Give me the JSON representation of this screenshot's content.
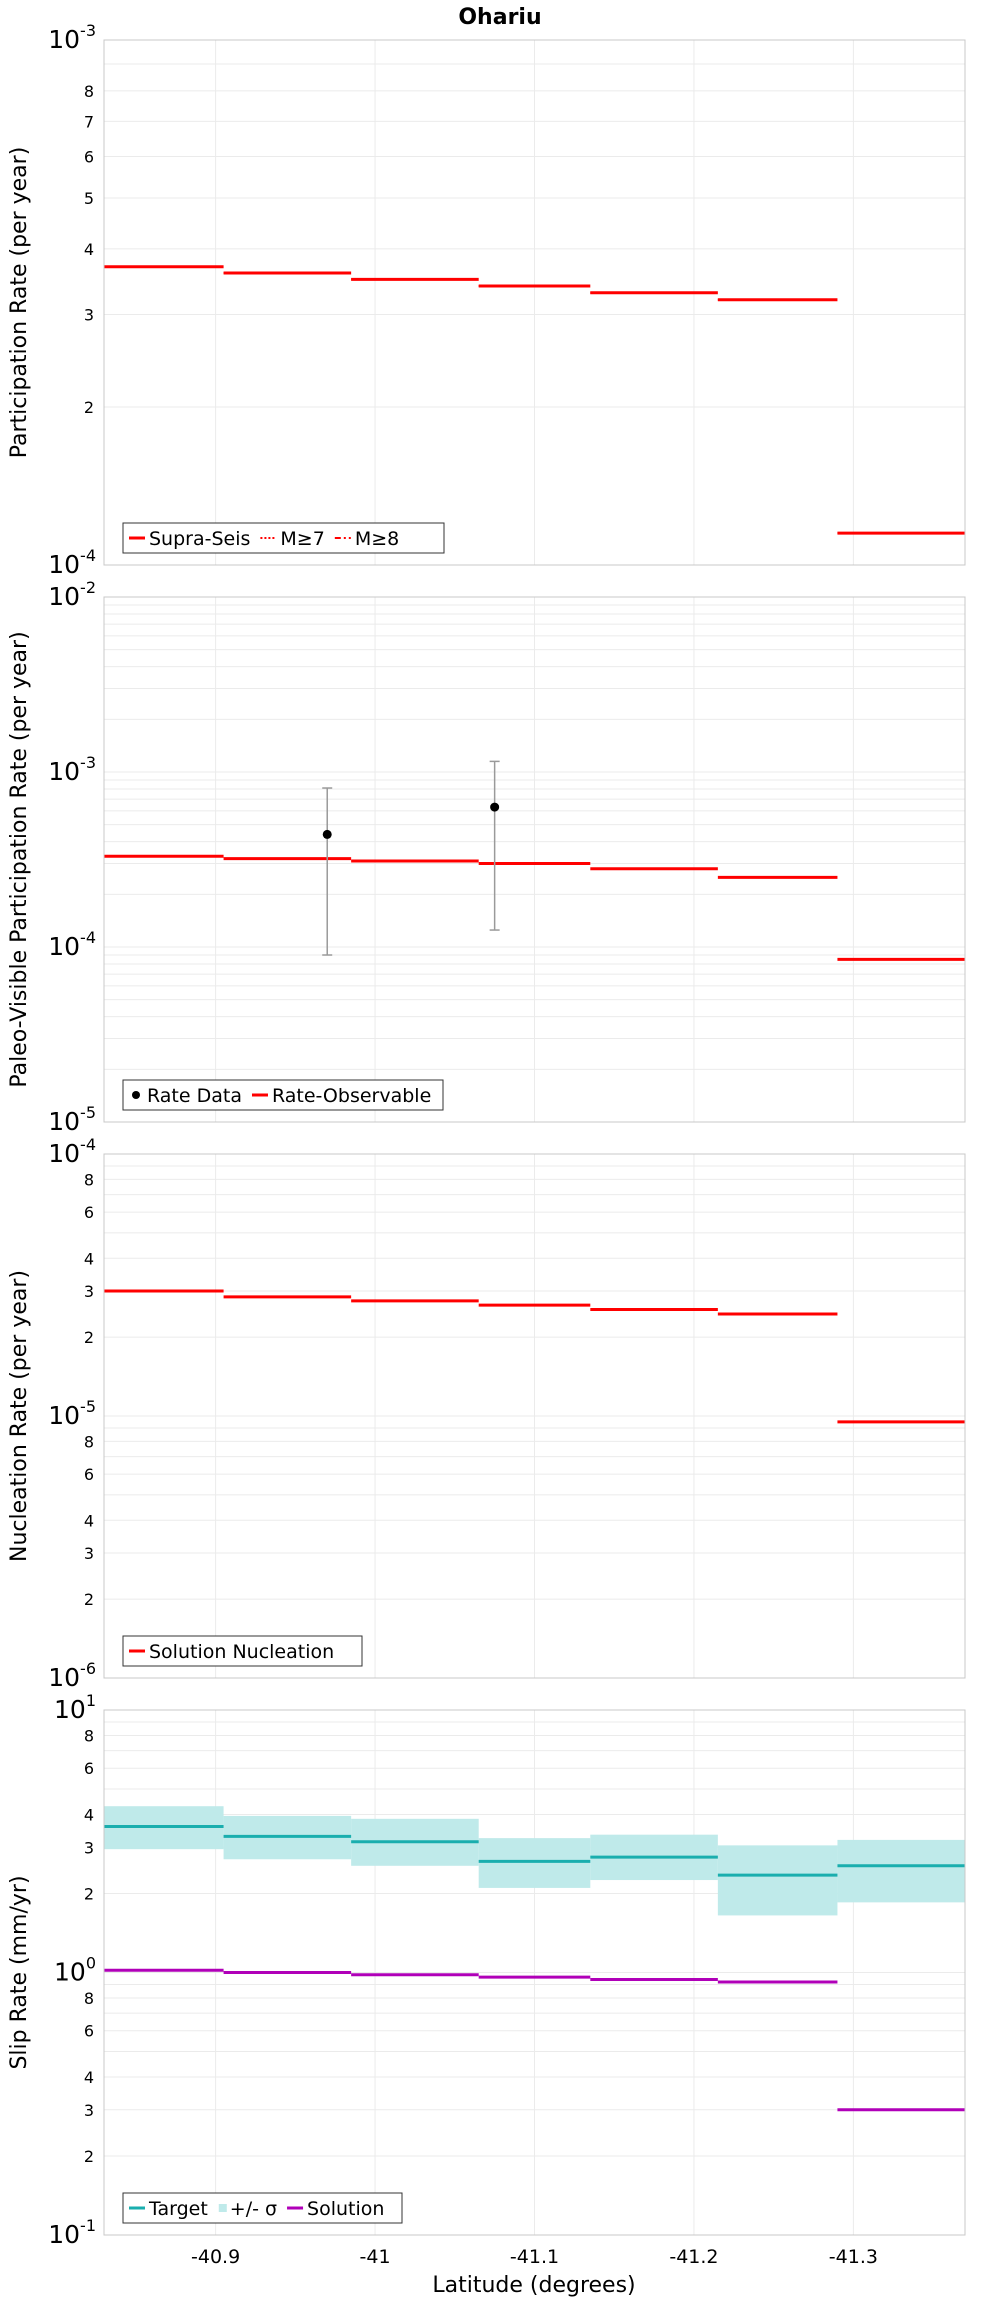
{
  "title": "Ohariu",
  "xlabel": "Latitude (degrees)",
  "x_ticks": [
    "-40.9",
    "-41",
    "-41.1",
    "-41.2",
    "-41.3"
  ],
  "colors": {
    "red": "#ff0000",
    "teal": "#1aaeae",
    "band": "#bfeaea",
    "purple": "#b000b8",
    "black": "#000000",
    "grid": "#ebebeb",
    "errorbar": "#9a9a9a"
  },
  "chart_data": [
    {
      "type": "line",
      "title": "Ohariu",
      "ylabel": "Participation Rate (per year)",
      "yscale": "log",
      "ylim": [
        0.0001,
        0.001
      ],
      "xlim": [
        -40.83,
        -41.37
      ],
      "grid": true,
      "legend_placement": "bottom-left",
      "y_major_labels": [
        {
          "base": "10",
          "exp": "-4"
        },
        {
          "base": "10",
          "exp": "-3"
        }
      ],
      "y_minor_labels": [
        "2",
        "3",
        "4",
        "5",
        "6",
        "7",
        "8"
      ],
      "x_segments": [
        [
          -40.83,
          -40.905
        ],
        [
          -40.905,
          -40.985
        ],
        [
          -40.985,
          -41.065
        ],
        [
          -41.065,
          -41.135
        ],
        [
          -41.135,
          -41.215
        ],
        [
          -41.215,
          -41.29
        ],
        [
          -41.29,
          -41.37
        ]
      ],
      "series": [
        {
          "name": "Supra-Seis",
          "style": "solid",
          "values": [
            0.00037,
            0.00036,
            0.00035,
            0.00034,
            0.00033,
            0.00032,
            0.000115
          ]
        },
        {
          "name": "M≥7",
          "style": "dotted",
          "values": [
            0.00037,
            0.00036,
            0.00035,
            0.00034,
            0.00033,
            0.00032,
            0.000115
          ]
        },
        {
          "name": "M≥8",
          "style": "dashdot",
          "values": [
            null,
            null,
            null,
            null,
            null,
            null,
            null
          ]
        }
      ]
    },
    {
      "type": "line",
      "ylabel": "Paleo-Visible Participation Rate (per year)",
      "yscale": "log",
      "ylim": [
        1e-05,
        0.01
      ],
      "xlim": [
        -40.83,
        -41.37
      ],
      "grid": true,
      "legend_placement": "bottom-left",
      "y_major_labels": [
        {
          "base": "10",
          "exp": "-5"
        },
        {
          "base": "10",
          "exp": "-4"
        },
        {
          "base": "10",
          "exp": "-3"
        },
        {
          "base": "10",
          "exp": "-2"
        }
      ],
      "x_segments": [
        [
          -40.83,
          -40.905
        ],
        [
          -40.905,
          -40.985
        ],
        [
          -40.985,
          -41.065
        ],
        [
          -41.065,
          -41.135
        ],
        [
          -41.135,
          -41.215
        ],
        [
          -41.215,
          -41.29
        ],
        [
          -41.29,
          -41.37
        ]
      ],
      "series": [
        {
          "name": "Rate-Observable",
          "style": "solid",
          "values": [
            0.00033,
            0.00032,
            0.00031,
            0.0003,
            0.00028,
            0.00025,
            8.5e-05
          ]
        }
      ],
      "points": {
        "name": "Rate Data",
        "data": [
          {
            "x": -40.97,
            "y": 0.00044,
            "ylow": 9e-05,
            "yhigh": 0.00081
          },
          {
            "x": -41.075,
            "y": 0.00063,
            "ylow": 0.000125,
            "yhigh": 0.00115
          }
        ]
      }
    },
    {
      "type": "line",
      "ylabel": "Nucleation Rate (per year)",
      "yscale": "log",
      "ylim": [
        1e-06,
        0.0001
      ],
      "xlim": [
        -40.83,
        -41.37
      ],
      "grid": true,
      "legend_placement": "bottom-left",
      "y_major_labels": [
        {
          "base": "10",
          "exp": "-6"
        },
        {
          "base": "10",
          "exp": "-5"
        },
        {
          "base": "10",
          "exp": "-4"
        }
      ],
      "y_minor_labels": [
        "2",
        "3",
        "4",
        "6",
        "8"
      ],
      "x_segments": [
        [
          -40.83,
          -40.905
        ],
        [
          -40.905,
          -40.985
        ],
        [
          -40.985,
          -41.065
        ],
        [
          -41.065,
          -41.135
        ],
        [
          -41.135,
          -41.215
        ],
        [
          -41.215,
          -41.29
        ],
        [
          -41.29,
          -41.37
        ]
      ],
      "series": [
        {
          "name": "Solution Nucleation",
          "style": "solid",
          "values": [
            3e-05,
            2.85e-05,
            2.75e-05,
            2.65e-05,
            2.55e-05,
            2.45e-05,
            9.5e-06
          ]
        }
      ]
    },
    {
      "type": "line",
      "ylabel": "Slip Rate (mm/yr)",
      "yscale": "log",
      "ylim": [
        0.1,
        10
      ],
      "xlim": [
        -40.83,
        -41.37
      ],
      "grid": true,
      "legend_placement": "bottom-left",
      "y_major_labels": [
        {
          "base": "10",
          "exp": "-1"
        },
        {
          "base": "10",
          "exp": "0"
        },
        {
          "base": "10",
          "exp": "1"
        }
      ],
      "y_minor_labels": [
        "2",
        "3",
        "4",
        "6",
        "8"
      ],
      "x_segments": [
        [
          -40.83,
          -40.905
        ],
        [
          -40.905,
          -40.985
        ],
        [
          -40.985,
          -41.065
        ],
        [
          -41.065,
          -41.135
        ],
        [
          -41.135,
          -41.215
        ],
        [
          -41.215,
          -41.29
        ],
        [
          -41.29,
          -41.37
        ]
      ],
      "series": [
        {
          "name": "Target",
          "style": "solid",
          "values": [
            3.6,
            3.3,
            3.15,
            2.65,
            2.75,
            2.35,
            2.55
          ]
        },
        {
          "name": "+/- σ",
          "style": "band",
          "low": [
            2.95,
            2.7,
            2.55,
            2.1,
            2.25,
            1.65,
            1.85
          ],
          "high": [
            4.3,
            3.95,
            3.85,
            3.25,
            3.35,
            3.05,
            3.2
          ]
        },
        {
          "name": "Solution",
          "style": "solid",
          "values": [
            1.02,
            1.0,
            0.98,
            0.96,
            0.94,
            0.92,
            0.3
          ]
        }
      ]
    }
  ]
}
